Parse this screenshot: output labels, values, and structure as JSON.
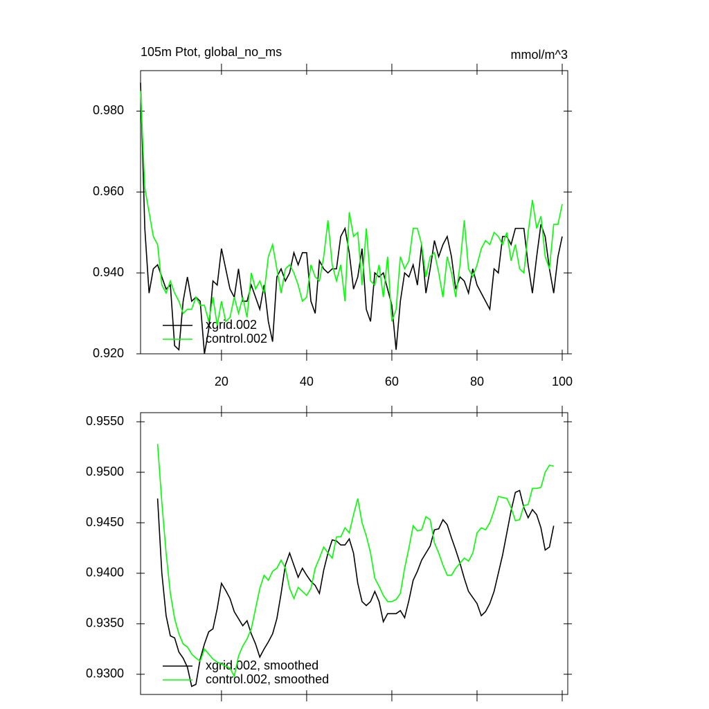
{
  "chart_data": [
    {
      "type": "line",
      "title": "105m Ptot, global_no_ms",
      "subtitle": "mmol/m^3",
      "legend": "lower left",
      "x": [
        1,
        2,
        3,
        4,
        5,
        6,
        7,
        8,
        9,
        10,
        11,
        12,
        13,
        14,
        15,
        16,
        17,
        18,
        19,
        20,
        21,
        22,
        23,
        24,
        25,
        26,
        27,
        28,
        29,
        30,
        31,
        32,
        33,
        34,
        35,
        36,
        37,
        38,
        39,
        40,
        41,
        42,
        43,
        44,
        45,
        46,
        47,
        48,
        49,
        50,
        51,
        52,
        53,
        54,
        55,
        56,
        57,
        58,
        59,
        60,
        61,
        62,
        63,
        64,
        65,
        66,
        67,
        68,
        69,
        70,
        71,
        72,
        73,
        74,
        75,
        76,
        77,
        78,
        79,
        80,
        81,
        82,
        83,
        84,
        85,
        86,
        87,
        88,
        89,
        90,
        91,
        92,
        93,
        94,
        95,
        96,
        97,
        98,
        99,
        100
      ],
      "xlim": [
        1,
        101.3
      ],
      "xticks": [
        20,
        40,
        60,
        80,
        100
      ],
      "ylim": [
        0.92,
        0.99
      ],
      "yticks": [
        {
          "value": 0.92,
          "label": "0.920"
        },
        {
          "value": 0.94,
          "label": "0.940"
        },
        {
          "value": 0.96,
          "label": "0.960"
        },
        {
          "value": 0.98,
          "label": "0.980"
        }
      ],
      "series": [
        {
          "name": "xgrid.002",
          "color": "#000000",
          "values": [
            0.987,
            0.951,
            0.935,
            0.941,
            0.942,
            0.939,
            0.936,
            0.937,
            0.922,
            0.921,
            0.933,
            0.939,
            0.933,
            0.934,
            0.933,
            0.92,
            0.926,
            0.938,
            0.937,
            0.946,
            0.941,
            0.936,
            0.934,
            0.941,
            0.933,
            0.933,
            0.937,
            0.934,
            0.931,
            0.937,
            0.928,
            0.923,
            0.939,
            0.941,
            0.938,
            0.94,
            0.945,
            0.942,
            0.945,
            0.945,
            0.933,
            0.93,
            0.943,
            0.941,
            0.94,
            0.941,
            0.941,
            0.949,
            0.951,
            0.945,
            0.936,
            0.939,
            0.946,
            0.931,
            0.928,
            0.94,
            0.939,
            0.94,
            0.936,
            0.932,
            0.921,
            0.933,
            0.94,
            0.939,
            0.942,
            0.937,
            0.947,
            0.935,
            0.941,
            0.948,
            0.944,
            0.947,
            0.949,
            0.944,
            0.936,
            0.939,
            0.938,
            0.935,
            0.941,
            0.937,
            0.935,
            0.933,
            0.931,
            0.941,
            0.94,
            0.949,
            0.949,
            0.947,
            0.951,
            0.951,
            0.951,
            0.942,
            0.935,
            0.944,
            0.952,
            0.949,
            0.941,
            0.935,
            0.944,
            0.949
          ]
        },
        {
          "name": "control.002",
          "color": "#00ff00",
          "values": [
            0.985,
            0.961,
            0.955,
            0.949,
            0.947,
            0.937,
            0.935,
            0.938,
            0.935,
            0.933,
            0.93,
            0.931,
            0.931,
            0.934,
            0.932,
            0.932,
            0.928,
            0.934,
            0.927,
            0.933,
            0.928,
            0.929,
            0.934,
            0.93,
            0.934,
            0.929,
            0.94,
            0.936,
            0.938,
            0.935,
            0.944,
            0.947,
            0.941,
            0.935,
            0.941,
            0.942,
            0.94,
            0.937,
            0.933,
            0.934,
            0.942,
            0.939,
            0.938,
            0.944,
            0.953,
            0.942,
            0.938,
            0.942,
            0.933,
            0.955,
            0.949,
            0.95,
            0.937,
            0.951,
            0.938,
            0.937,
            0.942,
            0.934,
            0.944,
            0.928,
            0.931,
            0.944,
            0.941,
            0.943,
            0.951,
            0.951,
            0.947,
            0.939,
            0.944,
            0.945,
            0.94,
            0.934,
            0.944,
            0.94,
            0.934,
            0.942,
            0.953,
            0.941,
            0.939,
            0.942,
            0.946,
            0.948,
            0.947,
            0.95,
            0.949,
            0.947,
            0.95,
            0.943,
            0.947,
            0.941,
            0.94,
            0.95,
            0.958,
            0.951,
            0.954,
            0.944,
            0.941,
            0.952,
            0.952,
            0.957
          ]
        }
      ]
    },
    {
      "type": "line",
      "legend": "lower left",
      "x": [
        5,
        6,
        7,
        8,
        9,
        10,
        11,
        12,
        13,
        14,
        15,
        16,
        17,
        18,
        19,
        20,
        21,
        22,
        23,
        24,
        25,
        26,
        27,
        28,
        29,
        30,
        31,
        32,
        33,
        34,
        35,
        36,
        37,
        38,
        39,
        40,
        41,
        42,
        43,
        44,
        45,
        46,
        47,
        48,
        49,
        50,
        51,
        52,
        53,
        54,
        55,
        56,
        57,
        58,
        59,
        60,
        61,
        62,
        63,
        64,
        65,
        66,
        67,
        68,
        69,
        70,
        71,
        72,
        73,
        74,
        75,
        76,
        77,
        78,
        79,
        80,
        81,
        82,
        83,
        84,
        85,
        86,
        87,
        88,
        89,
        90,
        91,
        92,
        93,
        94,
        95,
        96,
        97,
        98
      ],
      "xlim": [
        1,
        101.3
      ],
      "xticks": [
        20,
        40,
        60,
        80,
        100
      ],
      "ylim": [
        0.928,
        0.9559
      ],
      "yticks": [
        {
          "value": 0.93,
          "label": "0.9300"
        },
        {
          "value": 0.935,
          "label": "0.9350"
        },
        {
          "value": 0.94,
          "label": "0.9400"
        },
        {
          "value": 0.945,
          "label": "0.9450"
        },
        {
          "value": 0.95,
          "label": "0.9500"
        },
        {
          "value": 0.955,
          "label": "0.9550"
        }
      ],
      "series": [
        {
          "name": "xgrid.002, smoothed",
          "color": "#000000",
          "values": [
            0.9474,
            0.94,
            0.9358,
            0.9338,
            0.9336,
            0.9322,
            0.9316,
            0.9307,
            0.9288,
            0.929,
            0.9315,
            0.933,
            0.9342,
            0.9345,
            0.9365,
            0.939,
            0.9383,
            0.9375,
            0.9362,
            0.9355,
            0.9348,
            0.9353,
            0.934,
            0.933,
            0.9317,
            0.9325,
            0.9332,
            0.934,
            0.9355,
            0.938,
            0.9408,
            0.942,
            0.9408,
            0.9396,
            0.9405,
            0.9398,
            0.9392,
            0.9388,
            0.938,
            0.9403,
            0.942,
            0.9433,
            0.9432,
            0.9428,
            0.9428,
            0.9434,
            0.942,
            0.939,
            0.9372,
            0.9368,
            0.9372,
            0.9382,
            0.9372,
            0.9352,
            0.936,
            0.936,
            0.936,
            0.9363,
            0.9356,
            0.9373,
            0.9393,
            0.9402,
            0.9413,
            0.942,
            0.9427,
            0.9443,
            0.9444,
            0.9453,
            0.9448,
            0.9435,
            0.9423,
            0.941,
            0.9395,
            0.9382,
            0.9376,
            0.937,
            0.9358,
            0.9362,
            0.937,
            0.9382,
            0.94,
            0.9418,
            0.944,
            0.9462,
            0.948,
            0.9482,
            0.9465,
            0.9455,
            0.9463,
            0.9458,
            0.9445,
            0.9423,
            0.9426,
            0.9447
          ]
        },
        {
          "name": "control.002, smoothed",
          "color": "#00ff00",
          "values": [
            0.9528,
            0.947,
            0.942,
            0.938,
            0.9355,
            0.934,
            0.933,
            0.9327,
            0.932,
            0.9316,
            0.9313,
            0.9325,
            0.932,
            0.9315,
            0.9312,
            0.931,
            0.9308,
            0.9306,
            0.9298,
            0.9318,
            0.9328,
            0.9335,
            0.9345,
            0.9365,
            0.9385,
            0.9398,
            0.9393,
            0.9402,
            0.9405,
            0.9413,
            0.9405,
            0.9385,
            0.9375,
            0.9386,
            0.9382,
            0.9378,
            0.9385,
            0.9405,
            0.9415,
            0.9426,
            0.942,
            0.9415,
            0.9436,
            0.9436,
            0.9445,
            0.944,
            0.9458,
            0.9474,
            0.945,
            0.9437,
            0.942,
            0.9395,
            0.9387,
            0.9378,
            0.9372,
            0.9372,
            0.9374,
            0.938,
            0.9405,
            0.9425,
            0.9447,
            0.9442,
            0.9443,
            0.9456,
            0.9453,
            0.943,
            0.942,
            0.9408,
            0.9398,
            0.9398,
            0.9405,
            0.941,
            0.9415,
            0.9412,
            0.942,
            0.944,
            0.9445,
            0.9443,
            0.945,
            0.9462,
            0.9476,
            0.9475,
            0.9474,
            0.9465,
            0.9452,
            0.9453,
            0.9467,
            0.9468,
            0.9484,
            0.9484,
            0.9485,
            0.95,
            0.9507,
            0.9506
          ]
        }
      ]
    }
  ]
}
